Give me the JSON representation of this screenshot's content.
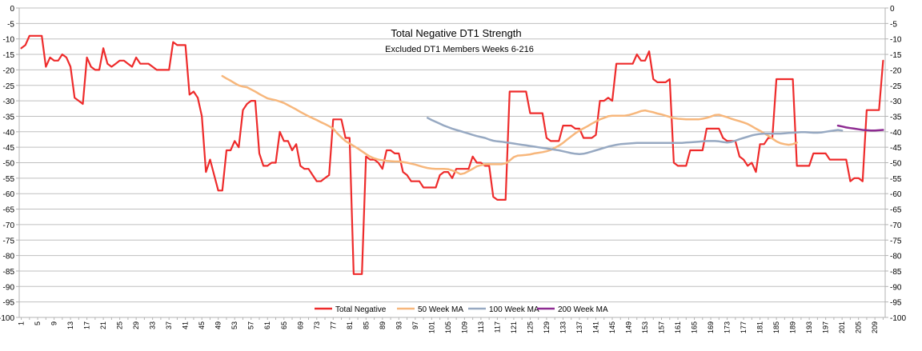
{
  "chart_data": {
    "type": "line",
    "title": "Total Negative DT1 Strength",
    "subtitle": "Excluded DT1 Members Weeks 6-216",
    "xlabel": "",
    "ylabel": "",
    "x": {
      "first": 1,
      "last": 211,
      "step": 1
    },
    "x_tick_labels": [
      1,
      5,
      9,
      13,
      17,
      21,
      25,
      29,
      33,
      37,
      41,
      45,
      49,
      53,
      57,
      61,
      65,
      69,
      73,
      77,
      81,
      85,
      89,
      93,
      97,
      101,
      105,
      109,
      113,
      117,
      121,
      125,
      129,
      133,
      137,
      141,
      145,
      149,
      153,
      157,
      161,
      165,
      169,
      173,
      177,
      181,
      185,
      189,
      193,
      197,
      201,
      205,
      209
    ],
    "y_tick_labels": [
      0,
      -5,
      -10,
      -15,
      -20,
      -25,
      -30,
      -35,
      -40,
      -45,
      -50,
      -55,
      -60,
      -65,
      -70,
      -75,
      -80,
      -85,
      -90,
      -95,
      -100
    ],
    "ylim": [
      -100,
      0
    ],
    "grid": true,
    "legend_position": "bottom-center",
    "colors": {
      "total_negative": "#ee2b2b",
      "ma50": "#f7b77c",
      "ma100": "#97a9c2",
      "ma200": "#8e2c92",
      "grid": "#bfbfbf",
      "axis": "#b3b3b3"
    },
    "series": [
      {
        "name": "Total Negative",
        "color": "#ee2b2b",
        "start_x": 1,
        "values": [
          -13,
          -12,
          -9,
          -9,
          -9,
          -9,
          -19,
          -16,
          -17,
          -17,
          -15,
          -16,
          -19,
          -29,
          -30,
          -31,
          -16,
          -19,
          -20,
          -20,
          -13,
          -18,
          -19,
          -18,
          -17,
          -17,
          -18,
          -19,
          -16,
          -18,
          -18,
          -18,
          -19,
          -20,
          -20,
          -20,
          -20,
          -11,
          -12,
          -12,
          -12,
          -28,
          -27,
          -29,
          -35,
          -53,
          -49,
          -54,
          -59,
          -59,
          -46,
          -46,
          -43,
          -45,
          -33,
          -31,
          -30,
          -30,
          -47,
          -51,
          -51,
          -50,
          -50,
          -40,
          -43,
          -43,
          -46,
          -44,
          -51,
          -52,
          -52,
          -54,
          -56,
          -56,
          -55,
          -54,
          -36,
          -36,
          -36,
          -42,
          -42,
          -86,
          -86,
          -86,
          -48,
          -49,
          -49,
          -50,
          -52,
          -46,
          -46,
          -47,
          -47,
          -53,
          -54,
          -56,
          -56,
          -56,
          -58,
          -58,
          -58,
          -58,
          -54,
          -53,
          -53,
          -55,
          -52,
          -52,
          -52,
          -52,
          -48,
          -50,
          -50,
          -51,
          -51,
          -61,
          -62,
          -62,
          -62,
          -27,
          -27,
          -27,
          -27,
          -27,
          -34,
          -34,
          -34,
          -34,
          -42,
          -43,
          -43,
          -43,
          -38,
          -38,
          -38,
          -39,
          -39,
          -42,
          -42,
          -42,
          -41,
          -30,
          -30,
          -29,
          -30,
          -18,
          -18,
          -18,
          -18,
          -18,
          -15,
          -17,
          -17,
          -14,
          -23,
          -24,
          -24,
          -24,
          -23,
          -50,
          -51,
          -51,
          -51,
          -46,
          -46,
          -46,
          -46,
          -39,
          -39,
          -39,
          -39,
          -42,
          -43,
          -43,
          -43,
          -48,
          -49,
          -51,
          -50,
          -53,
          -44,
          -44,
          -42,
          -42,
          -23,
          -23,
          -23,
          -23,
          -23,
          -51,
          -51,
          -51,
          -51,
          -47,
          -47,
          -47,
          -47,
          -49,
          -49,
          -49,
          -49,
          -49,
          -56,
          -55,
          -55,
          -56,
          -33,
          -33,
          -33,
          -33,
          -17
        ]
      },
      {
        "name": "50 Week MA",
        "color": "#f7b77c",
        "start_x": 50,
        "values": [
          -22,
          -22.8,
          -23.5,
          -24.3,
          -25,
          -25.4,
          -25.6,
          -26.3,
          -27,
          -27.8,
          -28.5,
          -29.2,
          -29.5,
          -29.8,
          -30.2,
          -30.7,
          -31.4,
          -32.1,
          -32.8,
          -33.6,
          -34.3,
          -35,
          -35.6,
          -36.2,
          -36.9,
          -37.5,
          -38.2,
          -39,
          -40.5,
          -41.8,
          -43,
          -43.8,
          -44.6,
          -45.4,
          -46.3,
          -47.2,
          -48,
          -48.6,
          -49,
          -49.2,
          -49.4,
          -49.5,
          -49.6,
          -49.6,
          -49.8,
          -50,
          -50.3,
          -50.6,
          -51,
          -51.4,
          -51.7,
          -51.9,
          -52,
          -52,
          -52,
          -52.1,
          -52.5,
          -53,
          -53.7,
          -53.4,
          -52.7,
          -52,
          -51.2,
          -50.8,
          -50.5,
          -50.5,
          -50.5,
          -50.5,
          -50.5,
          -50.2,
          -49.3,
          -48.2,
          -47.7,
          -47.6,
          -47.5,
          -47.3,
          -47,
          -46.8,
          -46.6,
          -46.3,
          -45.9,
          -45.2,
          -44.5,
          -43.6,
          -42.5,
          -41.5,
          -40.5,
          -39.6,
          -38.9,
          -38.2,
          -37.4,
          -36.7,
          -36,
          -35.5,
          -35,
          -34.8,
          -34.8,
          -34.8,
          -34.8,
          -34.6,
          -34.2,
          -33.8,
          -33.3,
          -33.1,
          -33.4,
          -33.7,
          -34.1,
          -34.4,
          -34.8,
          -35.2,
          -35.6,
          -35.8,
          -35.9,
          -36,
          -36,
          -36,
          -36,
          -35.8,
          -35.5,
          -35.1,
          -34.6,
          -34.5,
          -34.9,
          -35.3,
          -35.8,
          -36.2,
          -36.6,
          -37,
          -37.5,
          -38.2,
          -39,
          -39.7,
          -40.5,
          -41.3,
          -42.2,
          -43.1,
          -43.7,
          -44,
          -44.2,
          -44,
          -43.5
        ]
      },
      {
        "name": "100 Week MA",
        "color": "#97a9c2",
        "start_x": 100,
        "values": [
          -35.5,
          -36.2,
          -36.8,
          -37.4,
          -38,
          -38.5,
          -39,
          -39.4,
          -39.8,
          -40.2,
          -40.6,
          -41,
          -41.4,
          -41.7,
          -42,
          -42.5,
          -42.9,
          -43.1,
          -43.2,
          -43.4,
          -43.6,
          -43.8,
          -44,
          -44.2,
          -44.4,
          -44.6,
          -44.8,
          -45,
          -45.2,
          -45.4,
          -45.6,
          -45.8,
          -46,
          -46.3,
          -46.6,
          -46.9,
          -47.1,
          -47.2,
          -47.1,
          -46.8,
          -46.4,
          -46,
          -45.6,
          -45.2,
          -44.8,
          -44.5,
          -44.2,
          -44,
          -43.9,
          -43.8,
          -43.7,
          -43.6,
          -43.6,
          -43.6,
          -43.6,
          -43.6,
          -43.6,
          -43.6,
          -43.6,
          -43.6,
          -43.6,
          -43.6,
          -43.6,
          -43.5,
          -43.4,
          -43.3,
          -43.2,
          -43.1,
          -43,
          -43,
          -43,
          -43.1,
          -43.3,
          -43.5,
          -43.3,
          -42.9,
          -42.4,
          -42,
          -41.6,
          -41.2,
          -40.9,
          -40.7,
          -40.6,
          -40.6,
          -40.6,
          -40.6,
          -40.6,
          -40.5,
          -40.4,
          -40.3,
          -40.2,
          -40.1,
          -40.1,
          -40.2,
          -40.3,
          -40.3,
          -40.2,
          -40,
          -39.8,
          -39.6,
          -39.4,
          -39.6
        ]
      },
      {
        "name": "200 Week MA",
        "color": "#8e2c92",
        "start_x": 200,
        "values": [
          -38,
          -38.3,
          -38.6,
          -38.8,
          -39,
          -39.2,
          -39.4,
          -39.5,
          -39.6,
          -39.6,
          -39.5,
          -39.4
        ]
      }
    ]
  }
}
